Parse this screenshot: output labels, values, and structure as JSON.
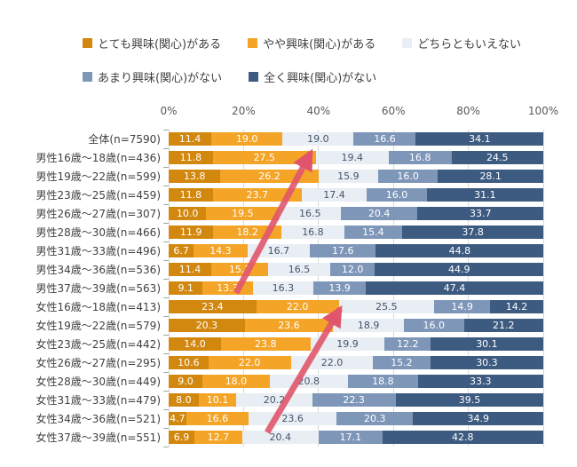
{
  "page": {
    "background": "#ffffff"
  },
  "legend": {
    "items": [
      {
        "label": "とても興味(関心)がある",
        "color": "#D2870F"
      },
      {
        "label": "やや興味(関心)がある",
        "color": "#F4A427"
      },
      {
        "label": "どちらともいえない",
        "color": "#E9EEF4"
      },
      {
        "label": "あまり興味(関心)がない",
        "color": "#7E96B8"
      },
      {
        "label": "全く興味(関心)がない",
        "color": "#3D5A80"
      }
    ]
  },
  "chart_data": {
    "type": "bar",
    "orientation": "horizontal",
    "stacked": true,
    "unit": "percent",
    "x_axis": {
      "ticks": [
        "0%",
        "20%",
        "40%",
        "60%",
        "80%",
        "100%"
      ],
      "range": [
        0,
        100
      ],
      "grid": true
    },
    "categories": [
      "全体(n=7590)",
      "男性16歳〜18歳(n=436)",
      "男性19歳〜22歳(n=599)",
      "男性23歳〜25歳(n=459)",
      "男性26歳〜27歳(n=307)",
      "男性28歳〜30歳(n=466)",
      "男性31歳〜33歳(n=496)",
      "男性34歳〜36歳(n=536)",
      "男性37歳〜39歳(n=563)",
      "女性16歳〜18歳(n=413)",
      "女性19歳〜22歳(n=579)",
      "女性23歳〜25歳(n=442)",
      "女性26歳〜27歳(n=295)",
      "女性28歳〜30歳(n=449)",
      "女性31歳〜33歳(n=479)",
      "女性34歳〜36歳(n=521)",
      "女性37歳〜39歳(n=551)"
    ],
    "series": [
      {
        "name": "とても興味(関心)がある",
        "color": "#D2870F",
        "label_color": "#ffffff",
        "values": [
          11.4,
          11.8,
          13.8,
          11.8,
          10.0,
          11.9,
          6.7,
          11.4,
          9.1,
          23.4,
          20.3,
          14.0,
          10.6,
          9.0,
          8.0,
          4.7,
          6.9
        ]
      },
      {
        "name": "やや興味(関心)がある",
        "color": "#F4A427",
        "label_color": "#ffffff",
        "values": [
          19.0,
          27.5,
          26.2,
          23.7,
          19.5,
          18.2,
          14.3,
          15.2,
          13.3,
          22.0,
          23.6,
          23.8,
          22.0,
          18.0,
          10.1,
          16.6,
          12.7
        ]
      },
      {
        "name": "どちらともいえない",
        "color": "#E9EEF4",
        "label_color": "#44546A",
        "values": [
          19.0,
          19.4,
          15.9,
          17.4,
          16.5,
          16.8,
          16.7,
          16.5,
          16.3,
          25.5,
          18.9,
          19.9,
          22.0,
          20.8,
          20.2,
          23.6,
          20.4
        ]
      },
      {
        "name": "あまり興味(関心)がない",
        "color": "#7E96B8",
        "label_color": "#ffffff",
        "values": [
          16.6,
          16.8,
          16.0,
          16.0,
          20.4,
          15.4,
          17.6,
          12.0,
          13.9,
          14.9,
          16.0,
          12.2,
          15.2,
          18.8,
          22.3,
          20.3,
          17.1
        ]
      },
      {
        "name": "全く興味(関心)がない",
        "color": "#3D5A80",
        "label_color": "#ffffff",
        "values": [
          34.1,
          24.5,
          28.1,
          31.1,
          33.7,
          37.8,
          44.8,
          44.9,
          47.4,
          14.2,
          21.2,
          30.1,
          30.3,
          33.3,
          39.5,
          34.9,
          42.8
        ]
      }
    ],
    "annotation_color": "#E0556B",
    "annotations": [
      {
        "type": "arrow",
        "from": [
          266,
          330
        ],
        "to": [
          350,
          172
        ]
      },
      {
        "type": "arrow",
        "from": [
          301,
          487
        ],
        "to": [
          383,
          348
        ]
      }
    ]
  }
}
